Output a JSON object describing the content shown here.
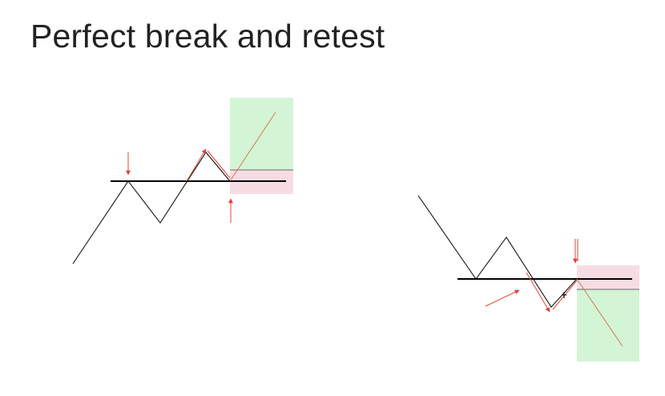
{
  "slide": {
    "title": "Perfect break and retest"
  },
  "colors": {
    "price_line": "#000000",
    "level_line": "#000000",
    "annotation": "#e0453a",
    "profit_zone": "#d3f5d5",
    "risk_zone": "#f8dce3",
    "zone_divider": "#6b6b6b"
  },
  "diagrams": [
    {
      "name": "bullish-break-retest",
      "direction": "long"
    },
    {
      "name": "bearish-break-retest",
      "direction": "short"
    }
  ]
}
